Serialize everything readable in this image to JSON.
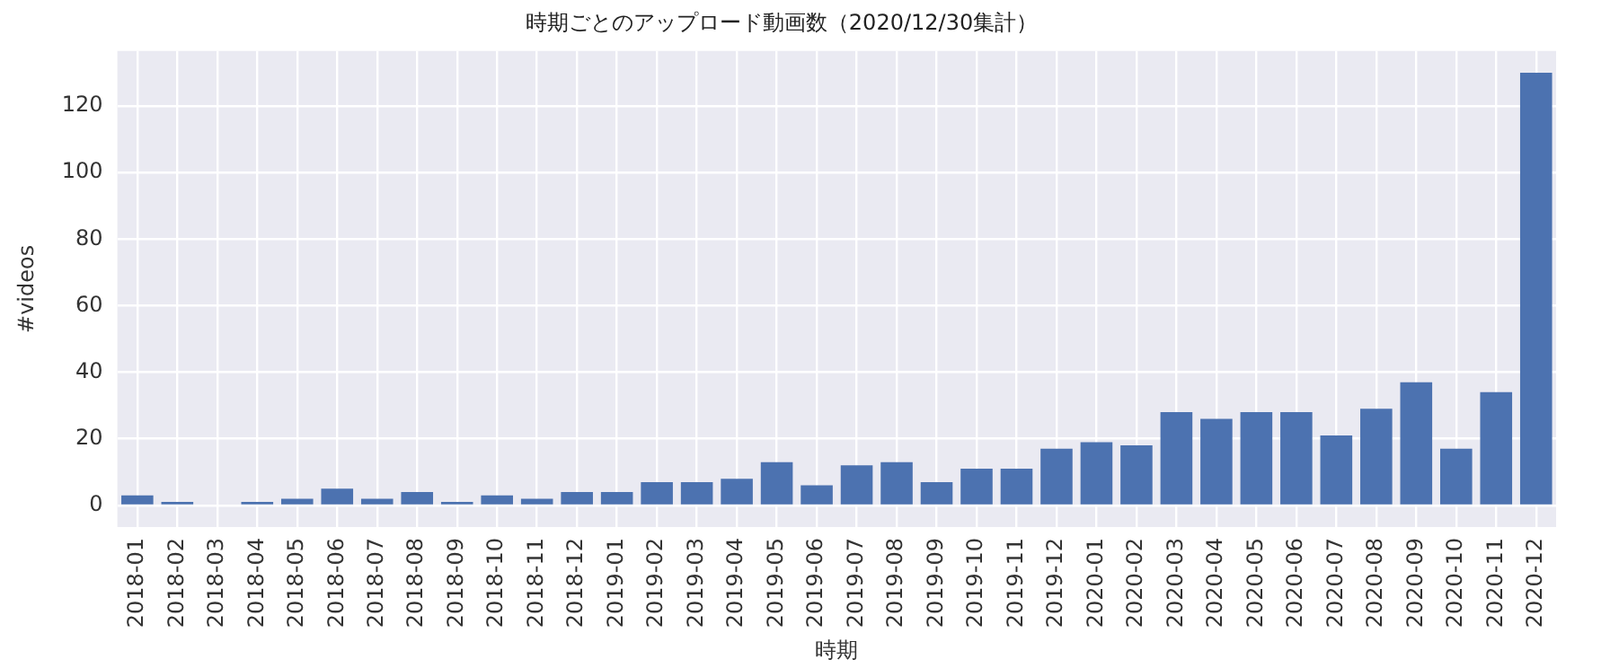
{
  "chart_data": {
    "type": "bar",
    "title": "時期ごとのアップロード動画数（2020/12/30集計）",
    "xlabel": "時期",
    "ylabel": "#videos",
    "categories": [
      "2018-01",
      "2018-02",
      "2018-03",
      "2018-04",
      "2018-05",
      "2018-06",
      "2018-07",
      "2018-08",
      "2018-09",
      "2018-10",
      "2018-11",
      "2018-12",
      "2019-01",
      "2019-02",
      "2019-03",
      "2019-04",
      "2019-05",
      "2019-06",
      "2019-07",
      "2019-08",
      "2019-09",
      "2019-10",
      "2019-11",
      "2019-12",
      "2020-01",
      "2020-02",
      "2020-03",
      "2020-04",
      "2020-05",
      "2020-06",
      "2020-07",
      "2020-08",
      "2020-09",
      "2020-10",
      "2020-11",
      "2020-12"
    ],
    "values": [
      3,
      1,
      0,
      1,
      2,
      5,
      2,
      4,
      1,
      3,
      2,
      4,
      4,
      7,
      7,
      8,
      13,
      6,
      12,
      13,
      7,
      11,
      11,
      17,
      19,
      18,
      28,
      26,
      28,
      28,
      21,
      29,
      37,
      17,
      34,
      130
    ],
    "color": "#4c72b0",
    "ylim": [
      -6.5,
      136.5
    ],
    "yticks": [
      0,
      20,
      40,
      60,
      80,
      100,
      120
    ],
    "grid": true
  }
}
